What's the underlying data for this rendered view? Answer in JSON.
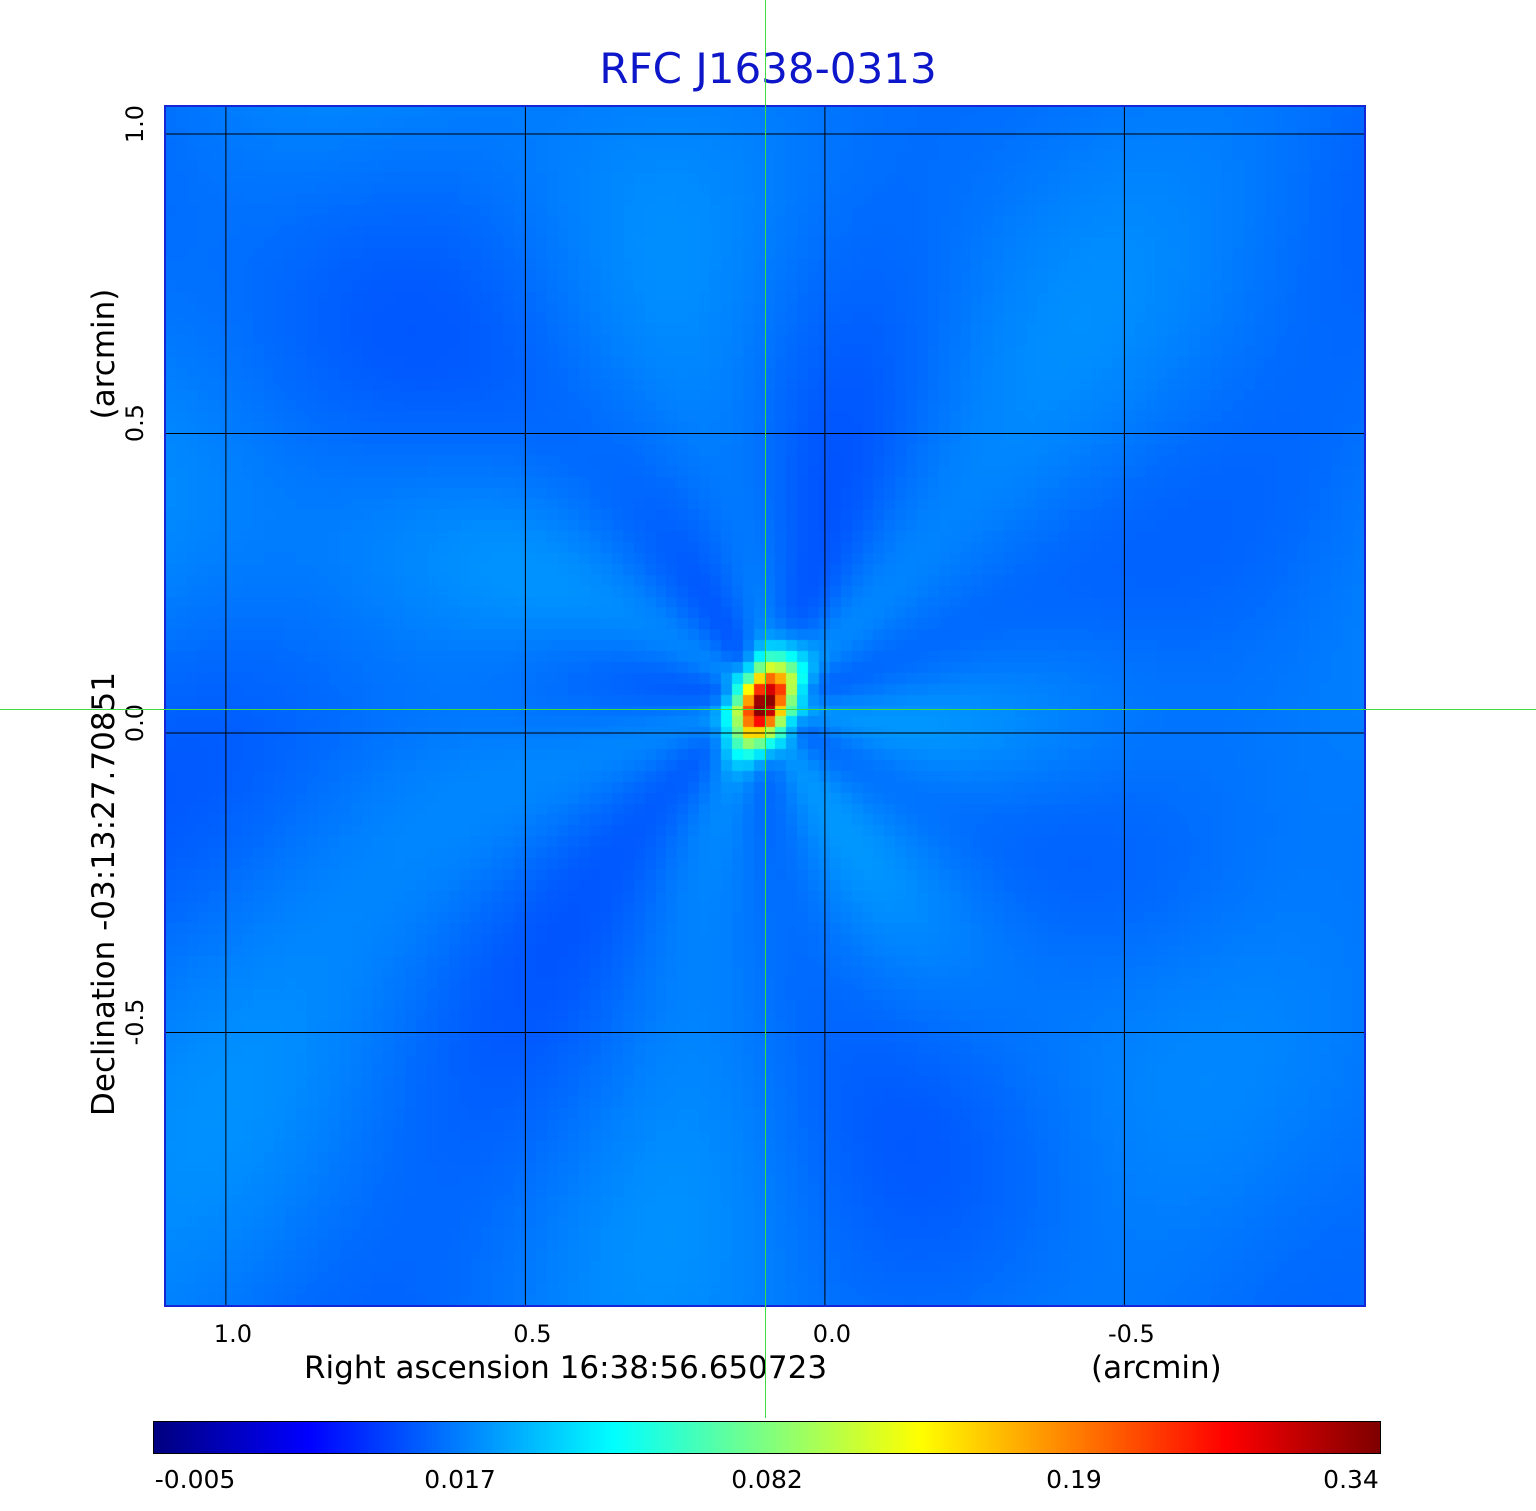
{
  "chart_data": {
    "type": "heatmap",
    "title": "RFC J1638-0313",
    "x_axis": {
      "label": "Right ascension  16:38:56.650723",
      "unit_label": "(arcmin)",
      "ticks": [
        1.0,
        0.5,
        0.0,
        -0.5
      ],
      "tick_labels": [
        "1.0",
        "0.5",
        "0.0",
        "-0.5"
      ],
      "range": [
        1.1,
        -0.9
      ],
      "reversed": true
    },
    "y_axis": {
      "label": "Declination  -03:13:27.70851",
      "unit_label": "(arcmin)",
      "ticks": [
        1.0,
        0.5,
        0.0,
        -0.5
      ],
      "tick_labels": [
        "1.0",
        "0.5",
        "0.0",
        "-0.5"
      ],
      "range": [
        -0.955,
        1.045
      ]
    },
    "grid": true,
    "colorbar": {
      "orientation": "horizontal",
      "position": "bottom",
      "ticks": [
        -0.005,
        0.017,
        0.082,
        0.19,
        0.34
      ],
      "tick_labels": [
        "-0.005",
        "0.017",
        "0.082",
        "0.19",
        "0.34"
      ],
      "colormap": "jet"
    },
    "source_peak": {
      "x": 0.1,
      "y": 0.05,
      "value": 0.34
    },
    "crosshair": {
      "x": 0.1,
      "y": 0.04
    }
  },
  "colors": {
    "title": "#0d16c9",
    "background_map": "#1650f0",
    "grid": "#000000",
    "crosshair": "#3ddc3d",
    "frame": "#1427d6"
  }
}
